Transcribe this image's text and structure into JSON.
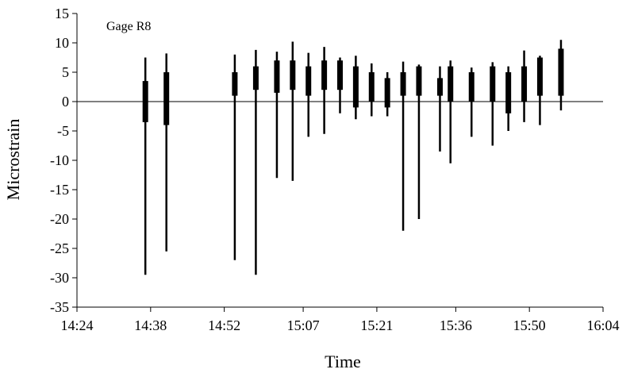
{
  "chart_data": {
    "type": "line",
    "title": "",
    "annotation": "Gage R8",
    "xlabel": "Time",
    "ylabel": "Microstrain",
    "xlim": [
      "14:24",
      "16:04"
    ],
    "ylim": [
      -35,
      15
    ],
    "x_ticks": [
      "14:24",
      "14:38",
      "14:52",
      "15:07",
      "15:21",
      "15:36",
      "15:50",
      "16:04"
    ],
    "y_ticks": [
      15,
      10,
      5,
      0,
      -5,
      -10,
      -15,
      -20,
      -25,
      -30,
      -35
    ],
    "grid": false,
    "legend": "none",
    "line_color": "#000000",
    "series": [
      {
        "events": [
          {
            "time": "14:37",
            "min": -29.5,
            "max": 7.5,
            "band_low": -3.5,
            "band_high": 3.5
          },
          {
            "time": "14:41",
            "min": -25.5,
            "max": 8.2,
            "band_low": -4,
            "band_high": 5
          },
          {
            "time": "14:54",
            "min": -27,
            "max": 8,
            "band_low": 1,
            "band_high": 5
          },
          {
            "time": "14:58",
            "min": -29.5,
            "max": 8.8,
            "band_low": 2,
            "band_high": 6
          },
          {
            "time": "15:02",
            "min": -13,
            "max": 8.5,
            "band_low": 1.5,
            "band_high": 7
          },
          {
            "time": "15:05",
            "min": -13.5,
            "max": 10.2,
            "band_low": 2,
            "band_high": 7
          },
          {
            "time": "15:08",
            "min": -6,
            "max": 8.3,
            "band_low": 1,
            "band_high": 6
          },
          {
            "time": "15:11",
            "min": -5.5,
            "max": 9.3,
            "band_low": 2,
            "band_high": 7
          },
          {
            "time": "15:14",
            "min": -2,
            "max": 7.5,
            "band_low": 2,
            "band_high": 7
          },
          {
            "time": "15:17",
            "min": -3,
            "max": 7.8,
            "band_low": -1,
            "band_high": 6
          },
          {
            "time": "15:20",
            "min": -2.5,
            "max": 6.5,
            "band_low": 0,
            "band_high": 5
          },
          {
            "time": "15:23",
            "min": -2.5,
            "max": 5,
            "band_low": -1,
            "band_high": 4
          },
          {
            "time": "15:26",
            "min": -22,
            "max": 6.8,
            "band_low": 1,
            "band_high": 5
          },
          {
            "time": "15:29",
            "min": -20,
            "max": 6.3,
            "band_low": 1,
            "band_high": 6
          },
          {
            "time": "15:33",
            "min": -8.5,
            "max": 6,
            "band_low": 1,
            "band_high": 4
          },
          {
            "time": "15:35",
            "min": -10.5,
            "max": 7,
            "band_low": 0,
            "band_high": 6
          },
          {
            "time": "15:39",
            "min": -6,
            "max": 5.8,
            "band_low": 0,
            "band_high": 5
          },
          {
            "time": "15:43",
            "min": -7.5,
            "max": 6.7,
            "band_low": 0,
            "band_high": 6
          },
          {
            "time": "15:46",
            "min": -5,
            "max": 6,
            "band_low": -2,
            "band_high": 5
          },
          {
            "time": "15:49",
            "min": -3.5,
            "max": 8.7,
            "band_low": 0,
            "band_high": 6
          },
          {
            "time": "15:52",
            "min": -4,
            "max": 7.8,
            "band_low": 1,
            "band_high": 7.5
          },
          {
            "time": "15:56",
            "min": -1.5,
            "max": 10.5,
            "band_low": 1,
            "band_high": 9
          }
        ]
      }
    ]
  }
}
